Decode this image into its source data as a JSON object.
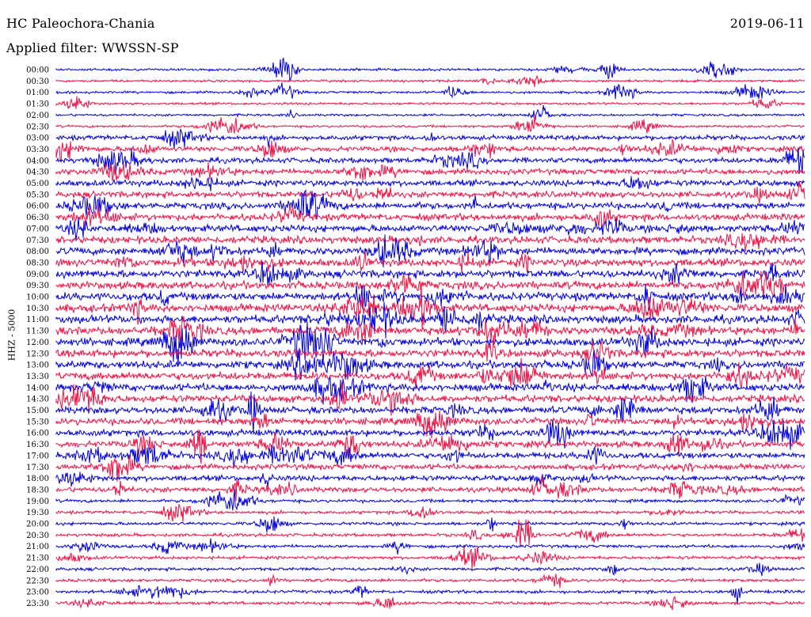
{
  "header": {
    "station": "HC Paleochora-Chania",
    "date": "2019-06-11",
    "filter": "Applied filter: WWSSN-SP"
  },
  "chart_data": {
    "type": "line",
    "title": "HC Paleochora-Chania",
    "ylabel": "HHZ - 5000",
    "categories": [
      "00:00",
      "00:30",
      "01:00",
      "01:30",
      "02:00",
      "02:30",
      "03:00",
      "03:30",
      "04:00",
      "04:30",
      "05:00",
      "05:30",
      "06:00",
      "06:30",
      "07:00",
      "07:30",
      "08:00",
      "08:30",
      "09:00",
      "09:30",
      "10:00",
      "10:30",
      "11:00",
      "11:30",
      "12:00",
      "12:30",
      "13:00",
      "13:30",
      "14:00",
      "14:30",
      "15:00",
      "15:30",
      "16:00",
      "16:30",
      "17:00",
      "17:30",
      "18:00",
      "18:30",
      "19:00",
      "19:30",
      "20:00",
      "20:30",
      "21:00",
      "21:30",
      "22:00",
      "22:30",
      "23:00",
      "23:30"
    ],
    "series_colors": [
      "#0000dd",
      "#ee1144"
    ],
    "legend": "none",
    "grid": false
  }
}
